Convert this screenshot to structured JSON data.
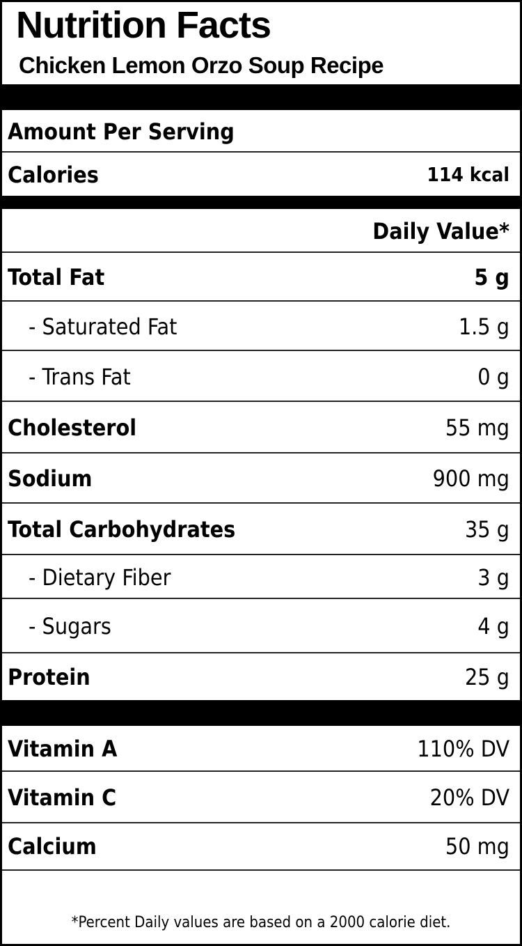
{
  "title": "Nutrition Facts",
  "subtitle": "Chicken Lemon Orzo Soup Recipe",
  "amount_per_serving": "Amount Per Serving",
  "calories": {
    "label": "Calories",
    "value": "114 kcal"
  },
  "daily_value_header": "Daily Value*",
  "nutrients": [
    {
      "label": "Total Fat",
      "value": "5 g"
    },
    {
      "label": "- Saturated Fat",
      "value": "1.5 g"
    },
    {
      "label": "- Trans Fat",
      "value": "0 g"
    },
    {
      "label": "Cholesterol",
      "value": "55 mg"
    },
    {
      "label": "Sodium",
      "value": "900 mg"
    },
    {
      "label": "Total Carbohydrates",
      "value": "35 g"
    },
    {
      "label": "- Dietary Fiber",
      "value": "3 g"
    },
    {
      "label": "- Sugars",
      "value": "4 g"
    },
    {
      "label": "Protein",
      "value": "25 g"
    }
  ],
  "vitamins": [
    {
      "label": "Vitamin A",
      "value": "110% DV"
    },
    {
      "label": "Vitamin C",
      "value": "20% DV"
    },
    {
      "label": "Calcium",
      "value": "50 mg"
    }
  ],
  "footnote": "*Percent Daily values are based on a 2000 calorie diet."
}
